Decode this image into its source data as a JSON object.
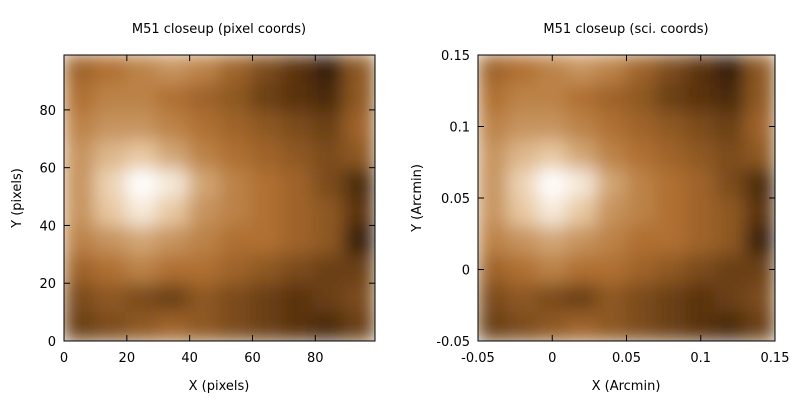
{
  "chart_data": [
    {
      "type": "heatmap",
      "title": "M51 closeup (pixel coords)",
      "xlabel": "X (pixels)",
      "ylabel": "Y (pixels)",
      "xlim": [
        0,
        99
      ],
      "ylim": [
        0,
        99
      ],
      "xticks": [
        "0",
        "20",
        "40",
        "60",
        "80"
      ],
      "xtick_values": [
        0,
        20,
        40,
        60,
        80
      ],
      "yticks": [
        "0",
        "20",
        "40",
        "60",
        "80"
      ],
      "ytick_values": [
        0,
        20,
        40,
        60,
        80
      ],
      "grid": false,
      "colormap": [
        "#000000",
        "#5a3310",
        "#b07030",
        "#e8c8a0",
        "#ffffff"
      ]
    },
    {
      "type": "heatmap",
      "title": "M51 closeup (sci. coords)",
      "xlabel": "X (Arcmin)",
      "ylabel": "Y (Arcmin)",
      "xlim": [
        -0.05,
        0.15
      ],
      "ylim": [
        -0.05,
        0.15
      ],
      "xticks": [
        "-0.05",
        "0",
        "0.05",
        "0.1",
        "0.15"
      ],
      "xtick_values": [
        -0.05,
        0,
        0.05,
        0.1,
        0.15
      ],
      "yticks": [
        "-0.05",
        "0",
        "0.05",
        "0.1",
        "0.15"
      ],
      "ytick_values": [
        -0.05,
        0,
        0.05,
        0.1,
        0.15
      ],
      "grid": false,
      "colormap": [
        "#000000",
        "#5a3310",
        "#b07030",
        "#e8c8a0",
        "#ffffff"
      ]
    }
  ],
  "image_grid": [
    [
      0.45,
      0.5,
      0.55,
      0.6,
      0.55,
      0.45,
      0.35,
      0.25,
      0.15,
      0.4
    ],
    [
      0.5,
      0.55,
      0.55,
      0.5,
      0.45,
      0.4,
      0.3,
      0.25,
      0.2,
      0.4
    ],
    [
      0.55,
      0.6,
      0.6,
      0.55,
      0.5,
      0.45,
      0.4,
      0.35,
      0.3,
      0.45
    ],
    [
      0.6,
      0.7,
      0.75,
      0.65,
      0.55,
      0.5,
      0.45,
      0.4,
      0.35,
      0.4
    ],
    [
      0.6,
      0.8,
      1.0,
      0.9,
      0.65,
      0.55,
      0.5,
      0.45,
      0.35,
      0.2
    ],
    [
      0.6,
      0.75,
      0.9,
      0.75,
      0.6,
      0.55,
      0.5,
      0.45,
      0.4,
      0.25
    ],
    [
      0.55,
      0.6,
      0.65,
      0.6,
      0.55,
      0.5,
      0.5,
      0.45,
      0.4,
      0.15
    ],
    [
      0.45,
      0.5,
      0.55,
      0.5,
      0.5,
      0.45,
      0.4,
      0.35,
      0.3,
      0.3
    ],
    [
      0.35,
      0.4,
      0.35,
      0.3,
      0.4,
      0.35,
      0.3,
      0.25,
      0.3,
      0.35
    ],
    [
      0.3,
      0.35,
      0.4,
      0.45,
      0.4,
      0.35,
      0.3,
      0.25,
      0.2,
      0.3
    ]
  ]
}
